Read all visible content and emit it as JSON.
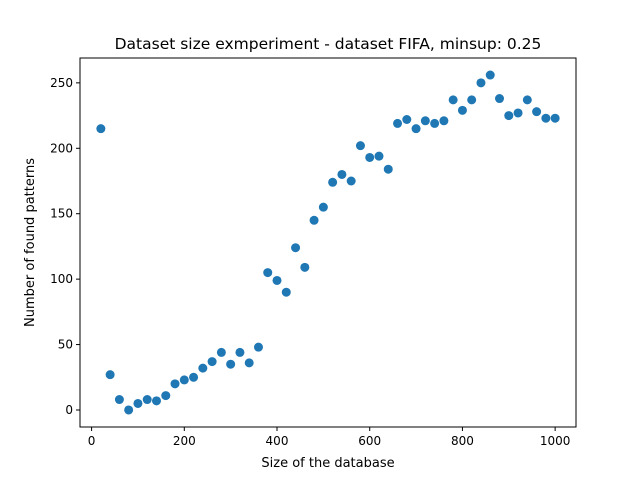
{
  "chart_data": {
    "type": "scatter",
    "title": "Dataset size exmperiment - dataset FIFA, minsup: 0.25",
    "xlabel": "Size of the database",
    "ylabel": "Number of found patterns",
    "xlim": [
      -25,
      1045
    ],
    "ylim": [
      -13,
      269
    ],
    "xticks": [
      0,
      200,
      400,
      600,
      800,
      1000
    ],
    "yticks": [
      0,
      50,
      100,
      150,
      200,
      250
    ],
    "grid": false,
    "marker_color": "#1f77b4",
    "series": [
      {
        "x": [
          20,
          40,
          60,
          80,
          100,
          120,
          140,
          160,
          180,
          200,
          220,
          240,
          260,
          280,
          300,
          320,
          340,
          360,
          380,
          400,
          420,
          440,
          460,
          480,
          500,
          520,
          540,
          560,
          580,
          600,
          620,
          640,
          660,
          680,
          700,
          720,
          740,
          760,
          780,
          800,
          820,
          840,
          860,
          880,
          900,
          920,
          940,
          960,
          980,
          1000
        ],
        "y": [
          215,
          27,
          8,
          0,
          5,
          8,
          7,
          11,
          20,
          23,
          25,
          32,
          37,
          44,
          35,
          44,
          36,
          48,
          105,
          99,
          90,
          124,
          109,
          145,
          155,
          174,
          180,
          175,
          202,
          193,
          194,
          184,
          219,
          222,
          215,
          221,
          219,
          221,
          237,
          229,
          237,
          250,
          256,
          238,
          225,
          227,
          237,
          228,
          223,
          223
        ]
      }
    ]
  }
}
